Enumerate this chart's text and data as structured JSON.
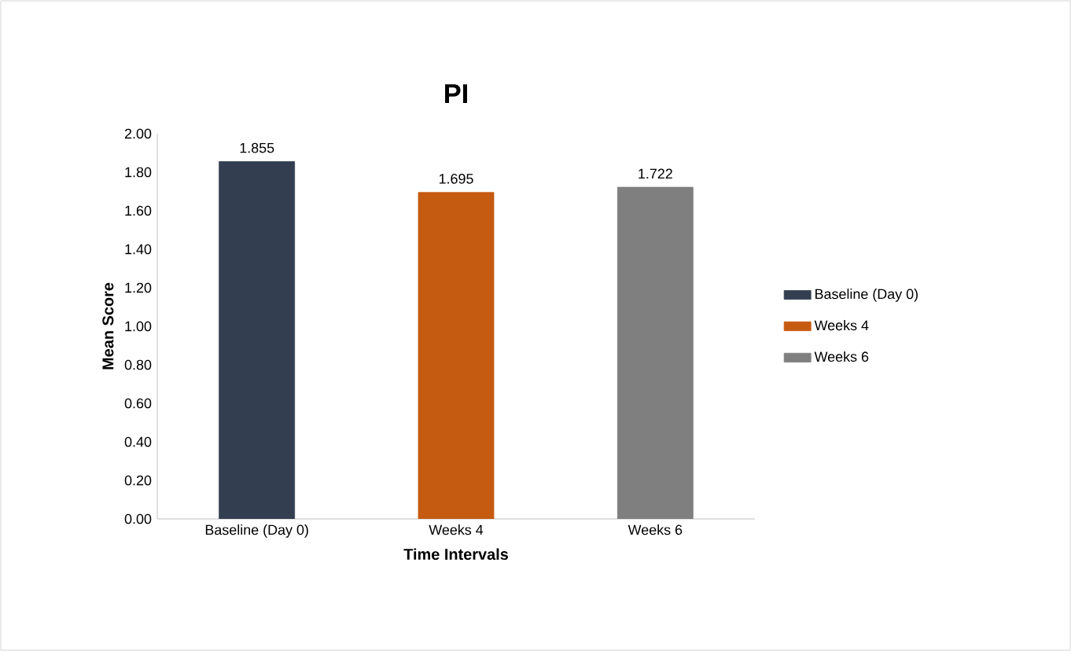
{
  "chart_data": {
    "type": "bar",
    "title": "PI",
    "xlabel": "Time Intervals",
    "ylabel": "Mean Score",
    "categories": [
      "Baseline (Day 0)",
      "Weeks 4",
      "Weeks 6"
    ],
    "series": [
      {
        "name": "Baseline (Day 0)",
        "color": "#333f50",
        "values": [
          1.855,
          null,
          null
        ]
      },
      {
        "name": "Weeks 4",
        "color": "#c55a11",
        "values": [
          null,
          1.695,
          null
        ]
      },
      {
        "name": "Weeks 6",
        "color": "#7f7f7f",
        "values": [
          null,
          null,
          1.722
        ]
      }
    ],
    "ylim": [
      0,
      2
    ],
    "yticks": [
      {
        "value": 0,
        "label": "0.00"
      },
      {
        "value": 0.2,
        "label": "0.20"
      },
      {
        "value": 0.4,
        "label": "0.40"
      },
      {
        "value": 0.6,
        "label": "0.60"
      },
      {
        "value": 0.8,
        "label": "0.80"
      },
      {
        "value": 1,
        "label": "1.00"
      },
      {
        "value": 1.2,
        "label": "1.20"
      },
      {
        "value": 1.4,
        "label": "1.40"
      },
      {
        "value": 1.6,
        "label": "1.60"
      },
      {
        "value": 1.8,
        "label": "1.80"
      },
      {
        "value": 2,
        "label": "2.00"
      }
    ],
    "data_labels": true,
    "legend": "right",
    "grid": false
  }
}
